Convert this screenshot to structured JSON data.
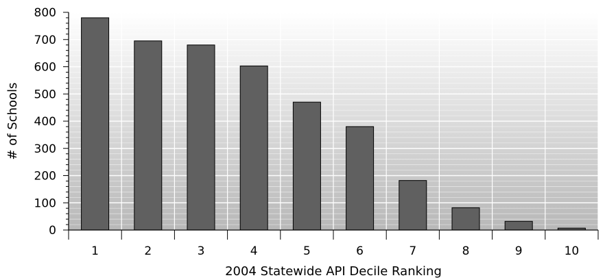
{
  "chart_data": {
    "type": "bar",
    "xlabel": "2004 Statewide API Decile Ranking",
    "ylabel": "# of Schools",
    "categories": [
      "1",
      "2",
      "3",
      "4",
      "5",
      "6",
      "7",
      "8",
      "9",
      "10"
    ],
    "values": [
      780,
      695,
      680,
      603,
      470,
      380,
      182,
      82,
      32,
      7
    ],
    "ylim": [
      0,
      800
    ],
    "yticks": [
      "0",
      "100",
      "200",
      "300",
      "400",
      "500",
      "600",
      "700",
      "800"
    ],
    "grid": true,
    "legend": "none",
    "colors": {
      "bar_fill": "#606060",
      "bar_stroke": "#000000",
      "grid": "#ffffff",
      "background_top": "#ffffff",
      "background_bottom": "#b8b8b8"
    }
  }
}
